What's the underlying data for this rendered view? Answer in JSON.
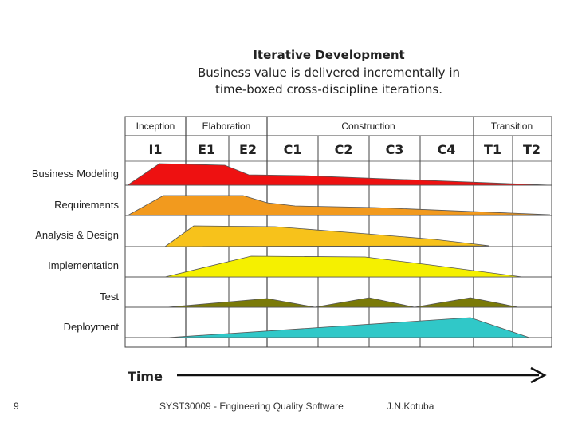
{
  "title": "Iterative Development",
  "subtitle_line1": "Business value is delivered incrementally in",
  "subtitle_line2": "time-boxed cross-discipline iterations.",
  "phases": [
    "Inception",
    "Elaboration",
    "Construction",
    "Transition"
  ],
  "iterations": [
    "I1",
    "E1",
    "E2",
    "C1",
    "C2",
    "C3",
    "C4",
    "T1",
    "T2"
  ],
  "disciplines": [
    "Business Modeling",
    "Requirements",
    "Analysis & Design",
    "Implementation",
    "Test",
    "Deployment"
  ],
  "time_label": "Time",
  "colors": {
    "business_modeling": "#ee1111",
    "requirements": "#f29a1e",
    "analysis_design": "#f7c21b",
    "implementation": "#f5f000",
    "test": "#7a7a08",
    "deployment": "#30c8c8"
  },
  "footer": {
    "slide_number": "9",
    "course": "SYST30009 - Engineering Quality Software",
    "author": "J.N.Kotuba"
  }
}
